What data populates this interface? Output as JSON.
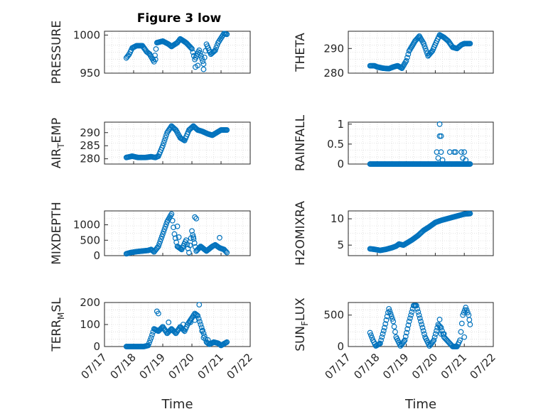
{
  "figure": {
    "title": "Figure 3 low"
  },
  "style": {
    "marker_color": "#0072BD",
    "axis_color": "#262626",
    "grid_color": "#dcdcdc"
  },
  "x_axis": {
    "label": "Time",
    "tick_labels": [
      "07/17",
      "07/18",
      "07/19",
      "07/20",
      "07/21",
      "07/22"
    ],
    "tick_values": [
      0,
      1,
      2,
      3,
      4,
      5
    ],
    "range": [
      0,
      5
    ]
  },
  "chart_data": [
    {
      "type": "scatter",
      "title": "Figure 3 low",
      "ylabel": "PRESSURE",
      "ylim": [
        950,
        1005
      ],
      "yticks": [
        950,
        1000
      ],
      "ytick_labels": [
        "950",
        "1000"
      ],
      "anchors": [
        [
          0.75,
          970
        ],
        [
          0.85,
          975
        ],
        [
          0.95,
          983
        ],
        [
          1.1,
          986
        ],
        [
          1.3,
          986
        ],
        [
          1.45,
          978
        ],
        [
          1.55,
          975
        ],
        [
          1.7,
          965
        ],
        [
          1.8,
          990
        ],
        [
          2.0,
          992
        ],
        [
          2.2,
          988
        ],
        [
          2.3,
          985
        ],
        [
          2.5,
          990
        ],
        [
          2.6,
          995
        ],
        [
          2.8,
          990
        ],
        [
          3.0,
          982
        ],
        [
          3.1,
          968
        ],
        [
          3.25,
          980
        ],
        [
          3.4,
          962
        ],
        [
          3.5,
          988
        ],
        [
          3.65,
          975
        ],
        [
          3.8,
          980
        ],
        [
          3.9,
          990
        ],
        [
          4.0,
          996
        ],
        [
          4.1,
          1002
        ],
        [
          4.2,
          1001
        ]
      ],
      "extra_points": [
        [
          1.75,
          968
        ],
        [
          3.12,
          958
        ],
        [
          3.4,
          955
        ],
        [
          3.2,
          960
        ]
      ]
    },
    {
      "type": "scatter",
      "ylabel": "THETA",
      "ylim": [
        280,
        297
      ],
      "yticks": [
        280,
        290
      ],
      "ytick_labels": [
        "280",
        "290"
      ],
      "anchors": [
        [
          0.75,
          283
        ],
        [
          0.9,
          283
        ],
        [
          1.0,
          282.5
        ],
        [
          1.2,
          282
        ],
        [
          1.4,
          281.8
        ],
        [
          1.55,
          282.5
        ],
        [
          1.7,
          283
        ],
        [
          1.85,
          282
        ],
        [
          2.0,
          285
        ],
        [
          2.1,
          289
        ],
        [
          2.3,
          293
        ],
        [
          2.45,
          295
        ],
        [
          2.6,
          292
        ],
        [
          2.75,
          287
        ],
        [
          2.9,
          289
        ],
        [
          3.05,
          293
        ],
        [
          3.15,
          295.5
        ],
        [
          3.3,
          294.5
        ],
        [
          3.45,
          293
        ],
        [
          3.6,
          290.5
        ],
        [
          3.75,
          290
        ],
        [
          3.9,
          291.5
        ],
        [
          4.0,
          292
        ],
        [
          4.2,
          292
        ]
      ],
      "extra_points": []
    },
    {
      "type": "scatter",
      "ylabel": "AIR_TEMP",
      "ylim": [
        278,
        294
      ],
      "yticks": [
        280,
        285,
        290
      ],
      "ytick_labels": [
        "280",
        "285",
        "290"
      ],
      "anchors": [
        [
          0.75,
          280.5
        ],
        [
          0.95,
          281
        ],
        [
          1.15,
          280.5
        ],
        [
          1.4,
          280.5
        ],
        [
          1.6,
          280.8
        ],
        [
          1.75,
          280.5
        ],
        [
          1.85,
          281
        ],
        [
          2.0,
          285
        ],
        [
          2.15,
          290
        ],
        [
          2.3,
          292.5
        ],
        [
          2.45,
          291
        ],
        [
          2.6,
          288
        ],
        [
          2.75,
          287
        ],
        [
          2.9,
          291
        ],
        [
          3.05,
          292.5
        ],
        [
          3.2,
          291
        ],
        [
          3.35,
          290.5
        ],
        [
          3.55,
          289.5
        ],
        [
          3.7,
          289
        ],
        [
          3.85,
          290
        ],
        [
          4.0,
          291
        ],
        [
          4.2,
          291
        ]
      ],
      "extra_points": []
    },
    {
      "type": "scatter",
      "ylabel": "RAINFALL",
      "ylim": [
        0,
        1.05
      ],
      "yticks": [
        0,
        0.5,
        1
      ],
      "ytick_labels": [
        "0",
        "0.5",
        "1"
      ],
      "anchors": [
        [
          0.75,
          0
        ],
        [
          4.2,
          0
        ]
      ],
      "extra_points": [
        [
          3.15,
          1.0
        ],
        [
          3.15,
          0.7
        ],
        [
          3.2,
          0.7
        ],
        [
          3.05,
          0.3
        ],
        [
          3.2,
          0.3
        ],
        [
          3.5,
          0.3
        ],
        [
          3.65,
          0.3
        ],
        [
          3.7,
          0.3
        ],
        [
          3.9,
          0.3
        ],
        [
          4.0,
          0.3
        ],
        [
          3.95,
          0.15
        ],
        [
          4.05,
          0.1
        ],
        [
          3.1,
          0.15
        ],
        [
          3.25,
          0.1
        ]
      ]
    },
    {
      "type": "scatter",
      "ylabel": "MIXDEPTH",
      "ylim": [
        0,
        1450
      ],
      "yticks": [
        0,
        500,
        1000
      ],
      "ytick_labels": [
        "0",
        "500",
        "1000"
      ],
      "anchors": [
        [
          0.75,
          60
        ],
        [
          0.9,
          100
        ],
        [
          1.1,
          130
        ],
        [
          1.3,
          150
        ],
        [
          1.5,
          170
        ],
        [
          1.6,
          200
        ],
        [
          1.7,
          120
        ],
        [
          1.85,
          300
        ],
        [
          2.0,
          700
        ],
        [
          2.15,
          1100
        ],
        [
          2.3,
          1350
        ],
        [
          2.4,
          700
        ],
        [
          2.5,
          300
        ],
        [
          2.65,
          200
        ],
        [
          2.8,
          500
        ],
        [
          2.9,
          100
        ],
        [
          3.0,
          800
        ],
        [
          3.15,
          150
        ],
        [
          3.3,
          300
        ],
        [
          3.5,
          150
        ],
        [
          3.7,
          300
        ],
        [
          3.8,
          350
        ],
        [
          3.95,
          250
        ],
        [
          4.1,
          200
        ],
        [
          4.2,
          100
        ]
      ],
      "extra_points": [
        [
          2.5,
          950
        ],
        [
          3.1,
          1250
        ],
        [
          3.15,
          1200
        ],
        [
          3.05,
          600
        ],
        [
          3.95,
          580
        ],
        [
          2.55,
          600
        ]
      ]
    },
    {
      "type": "scatter",
      "ylabel": "H2OMIXRA",
      "ylim": [
        3,
        11.5
      ],
      "yticks": [
        5,
        10
      ],
      "ytick_labels": [
        "5",
        "10"
      ],
      "anchors": [
        [
          0.75,
          4.3
        ],
        [
          0.9,
          4.2
        ],
        [
          1.1,
          4.0
        ],
        [
          1.3,
          4.2
        ],
        [
          1.5,
          4.5
        ],
        [
          1.65,
          4.8
        ],
        [
          1.75,
          5.2
        ],
        [
          1.9,
          5.0
        ],
        [
          2.05,
          5.5
        ],
        [
          2.2,
          6.0
        ],
        [
          2.4,
          6.8
        ],
        [
          2.6,
          7.8
        ],
        [
          2.8,
          8.5
        ],
        [
          3.0,
          9.3
        ],
        [
          3.2,
          9.7
        ],
        [
          3.4,
          10.0
        ],
        [
          3.6,
          10.3
        ],
        [
          3.8,
          10.6
        ],
        [
          4.0,
          10.9
        ],
        [
          4.2,
          11.0
        ]
      ],
      "extra_points": []
    },
    {
      "type": "scatter",
      "ylabel": "TERR_MSL",
      "ylim": [
        0,
        200
      ],
      "yticks": [
        0,
        100,
        200
      ],
      "ytick_labels": [
        "0",
        "100",
        "200"
      ],
      "anchors": [
        [
          0.75,
          0
        ],
        [
          1.05,
          0
        ],
        [
          1.2,
          0
        ],
        [
          1.35,
          0
        ],
        [
          1.5,
          5
        ],
        [
          1.6,
          40
        ],
        [
          1.7,
          80
        ],
        [
          1.85,
          70
        ],
        [
          2.0,
          90
        ],
        [
          2.15,
          60
        ],
        [
          2.3,
          80
        ],
        [
          2.45,
          60
        ],
        [
          2.6,
          90
        ],
        [
          2.75,
          70
        ],
        [
          2.85,
          100
        ],
        [
          3.0,
          130
        ],
        [
          3.1,
          150
        ],
        [
          3.2,
          140
        ],
        [
          3.3,
          100
        ],
        [
          3.4,
          60
        ],
        [
          3.5,
          20
        ],
        [
          3.6,
          10
        ],
        [
          3.75,
          20
        ],
        [
          3.9,
          15
        ],
        [
          4.0,
          5
        ],
        [
          4.2,
          20
        ]
      ],
      "extra_points": [
        [
          1.8,
          160
        ],
        [
          1.85,
          150
        ],
        [
          3.25,
          190
        ],
        [
          3.1,
          120
        ],
        [
          2.7,
          100
        ],
        [
          2.95,
          110
        ],
        [
          2.2,
          110
        ],
        [
          3.35,
          70
        ],
        [
          3.4,
          40
        ],
        [
          3.55,
          30
        ]
      ]
    },
    {
      "type": "scatter",
      "ylabel": "SUN_FLUX",
      "ylim": [
        0,
        700
      ],
      "yticks": [
        0,
        500
      ],
      "ytick_labels": [
        "0",
        "500"
      ],
      "anchors": [
        [
          0.75,
          220
        ],
        [
          0.85,
          100
        ],
        [
          0.95,
          10
        ],
        [
          1.1,
          50
        ],
        [
          1.25,
          300
        ],
        [
          1.4,
          600
        ],
        [
          1.55,
          400
        ],
        [
          1.65,
          150
        ],
        [
          1.8,
          10
        ],
        [
          1.95,
          100
        ],
        [
          2.1,
          400
        ],
        [
          2.25,
          650
        ],
        [
          2.35,
          650
        ],
        [
          2.5,
          400
        ],
        [
          2.65,
          150
        ],
        [
          2.8,
          10
        ],
        [
          2.95,
          100
        ],
        [
          3.1,
          350
        ],
        [
          3.2,
          300
        ],
        [
          3.3,
          150
        ],
        [
          3.4,
          100
        ],
        [
          3.5,
          50
        ],
        [
          3.6,
          0
        ],
        [
          3.75,
          0
        ],
        [
          3.85,
          100
        ],
        [
          3.95,
          500
        ],
        [
          4.05,
          620
        ],
        [
          4.15,
          500
        ],
        [
          4.2,
          350
        ]
      ],
      "extra_points": [
        [
          3.15,
          430
        ],
        [
          3.2,
          200
        ],
        [
          3.3,
          200
        ],
        [
          4.0,
          150
        ]
      ]
    }
  ]
}
